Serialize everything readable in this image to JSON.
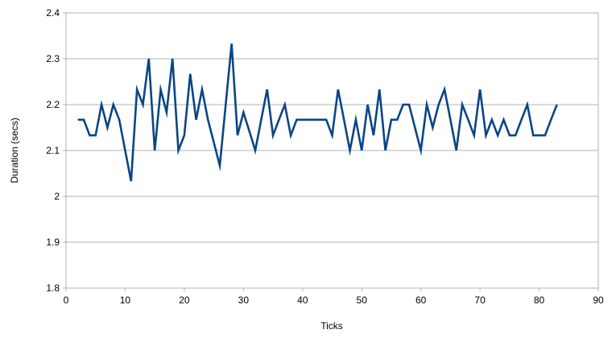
{
  "chart_data": {
    "type": "line",
    "title": "",
    "xlabel": "Ticks",
    "ylabel": "Duration (secs)",
    "x_start": 2,
    "x_step": 1,
    "values": [
      2.167,
      2.167,
      2.133,
      2.133,
      2.2,
      2.15,
      2.2,
      2.167,
      2.1,
      2.033,
      2.233,
      2.2,
      2.3,
      2.1,
      2.233,
      2.183,
      2.3,
      2.1,
      2.133,
      2.267,
      2.167,
      2.233,
      2.167,
      2.117,
      2.067,
      2.2,
      2.333,
      2.133,
      2.183,
      2.142,
      2.1,
      2.167,
      2.233,
      2.133,
      2.167,
      2.2,
      2.133,
      2.167,
      2.167,
      2.167,
      2.167,
      2.167,
      2.167,
      2.133,
      2.233,
      2.167,
      2.1,
      2.167,
      2.1,
      2.2,
      2.133,
      2.233,
      2.1,
      2.167,
      2.167,
      2.2,
      2.2,
      2.15,
      2.1,
      2.2,
      2.15,
      2.2,
      2.233,
      2.167,
      2.1,
      2.2,
      2.167,
      2.133,
      2.233,
      2.133,
      2.167,
      2.133,
      2.167,
      2.133,
      2.133,
      2.167,
      2.2,
      2.133,
      2.133,
      2.133,
      2.167,
      2.2
    ],
    "xlim": [
      0,
      90
    ],
    "ylim": [
      1.8,
      2.4
    ],
    "x_tick_values": [
      0,
      10,
      20,
      30,
      40,
      50,
      60,
      70,
      80,
      90
    ],
    "x_tick_labels": [
      "0",
      "10",
      "20",
      "30",
      "40",
      "50",
      "60",
      "70",
      "80",
      "90"
    ],
    "y_tick_values": [
      1.8,
      1.9,
      2.0,
      2.1,
      2.2,
      2.3,
      2.4
    ],
    "y_tick_labels": [
      "1.8",
      "1.9",
      "2",
      "2.1",
      "2.2",
      "2.3",
      "2.4"
    ],
    "grid": "horizontal",
    "legend": "none",
    "line_color": "#0a4585",
    "grid_color": "#b3b3b3",
    "axis_color": "#b3b3b3",
    "text_color": "#000000",
    "background": "#ffffff"
  }
}
